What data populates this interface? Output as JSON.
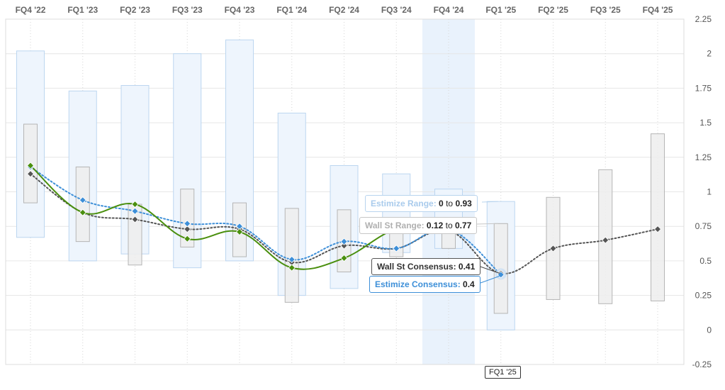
{
  "chart_data": {
    "type": "line",
    "categories": [
      "FQ4 '22",
      "FQ1 '23",
      "FQ2 '23",
      "FQ3 '23",
      "FQ4 '23",
      "FQ1 '24",
      "FQ2 '24",
      "FQ3 '24",
      "FQ4 '24",
      "FQ1 '25",
      "FQ2 '25",
      "FQ3 '25",
      "FQ4 '25"
    ],
    "ylim": [
      -0.25,
      2.25
    ],
    "y_ticks": [
      "2.25",
      "2",
      "1.75",
      "1.5",
      "1.25",
      "1",
      "0.75",
      "0.5",
      "0.25",
      "0",
      "-0.25"
    ],
    "grid": true,
    "highlighted_category": "FQ4 '24",
    "estimize_range": [
      [
        0.67,
        2.02
      ],
      [
        0.5,
        1.73
      ],
      [
        0.55,
        1.77
      ],
      [
        0.45,
        2.0
      ],
      [
        0.5,
        2.1
      ],
      [
        0.25,
        1.57
      ],
      [
        0.3,
        1.19
      ],
      [
        0.56,
        1.13
      ],
      [
        0.59,
        1.02
      ],
      [
        0.0,
        0.93
      ],
      null,
      null,
      null
    ],
    "wallst_range": [
      [
        0.92,
        1.49
      ],
      [
        0.64,
        1.18
      ],
      [
        0.47,
        0.91
      ],
      [
        0.6,
        1.02
      ],
      [
        0.53,
        0.92
      ],
      [
        0.2,
        0.88
      ],
      [
        0.42,
        0.87
      ],
      [
        0.53,
        0.7
      ],
      [
        0.59,
        0.7
      ],
      [
        0.12,
        0.77
      ],
      [
        0.22,
        0.96
      ],
      [
        0.19,
        1.16
      ],
      [
        0.21,
        1.42
      ]
    ],
    "series": [
      {
        "key": "actual",
        "color": "#4a8f0e",
        "style": "solid",
        "values": [
          1.19,
          0.85,
          0.91,
          0.66,
          0.71,
          0.45,
          0.52,
          0.73,
          0.74,
          null,
          null,
          null,
          null
        ]
      },
      {
        "key": "estimize",
        "color": "#3d8fd8",
        "style": "dotted",
        "values": [
          1.18,
          0.94,
          0.86,
          0.77,
          0.75,
          0.51,
          0.64,
          0.59,
          0.73,
          0.4,
          null,
          null,
          null
        ]
      },
      {
        "key": "wallst",
        "color": "#555555",
        "style": "dotted",
        "values": [
          1.13,
          0.85,
          0.8,
          0.73,
          0.73,
          0.49,
          0.61,
          0.59,
          0.72,
          0.41,
          0.59,
          0.65,
          0.73
        ]
      }
    ],
    "colors": {
      "estimize_box_fill": "#eef5fd",
      "estimize_box_stroke": "#bcd6f0",
      "wallst_box_fill": "#ededed",
      "wallst_box_stroke": "#b5b5b5",
      "highlight_band": "#e9f2fc",
      "grid": "#e6e6e6"
    },
    "tooltips": {
      "estimize_range": {
        "label": "Estimize Range:",
        "low": "0",
        "to": "to",
        "high": "0.93"
      },
      "wallst_range": {
        "label": "Wall St Range:",
        "low": "0.12",
        "to": "to",
        "high": "0.77"
      },
      "wallst_consensus": {
        "label": "Wall St Consensus:",
        "value": "0.41"
      },
      "estimize_consensus": {
        "label": "Estimize Consensus:",
        "value": "0.4"
      }
    },
    "hover_label": "FQ1 '25"
  }
}
